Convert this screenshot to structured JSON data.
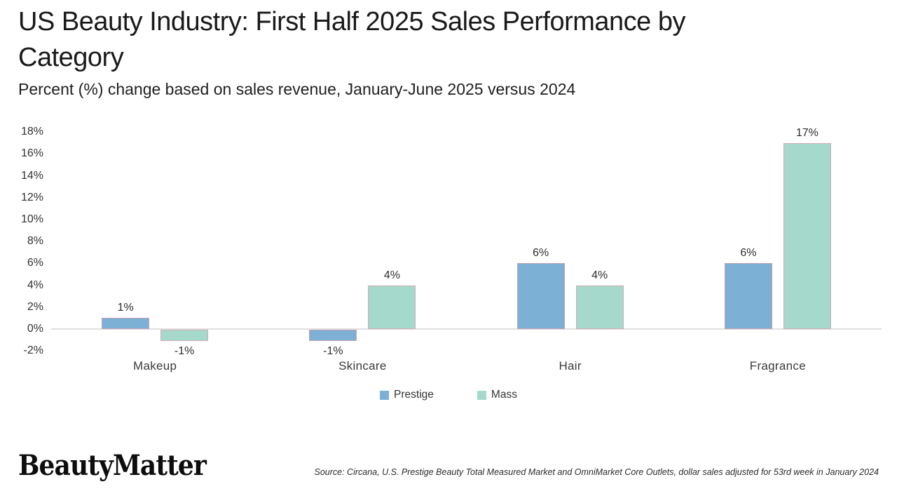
{
  "header": {
    "title": "US Beauty Industry: First Half 2025 Sales Performance by\nCategory",
    "subtitle": "Percent (%) change based on sales revenue, January-June 2025 versus 2024"
  },
  "chart_data": {
    "type": "bar",
    "title": "US Beauty Industry: First Half 2025 Sales Performance by Category",
    "subtitle": "Percent (%) change based on sales revenue, January-June 2025 versus 2024",
    "categories": [
      "Makeup",
      "Skincare",
      "Hair",
      "Fragrance"
    ],
    "series": [
      {
        "name": "Prestige",
        "color": "#7cb0d5",
        "values": [
          1,
          -1,
          6,
          6
        ]
      },
      {
        "name": "Mass",
        "color": "#a5d9cc",
        "values": [
          -1,
          4,
          4,
          17
        ]
      }
    ],
    "xlabel": "",
    "ylabel": "",
    "ylim": [
      -2,
      18
    ],
    "y_step": 2,
    "y_tick_suffix": "%",
    "grid": false,
    "legend_position": "bottom",
    "data_labels": true
  },
  "colors": {
    "prestige": "#7cb0d5",
    "mass": "#a5d9cc",
    "axis_line": "#e0e0e0",
    "bar_border": "rgba(219,158,173,0.75)"
  },
  "footer": {
    "logo": "BeautyMatter",
    "source": "Source: Circana, U.S. Prestige Beauty Total Measured Market and OmniMarket Core Outlets, dollar sales adjusted for 53rd week in January 2024"
  }
}
